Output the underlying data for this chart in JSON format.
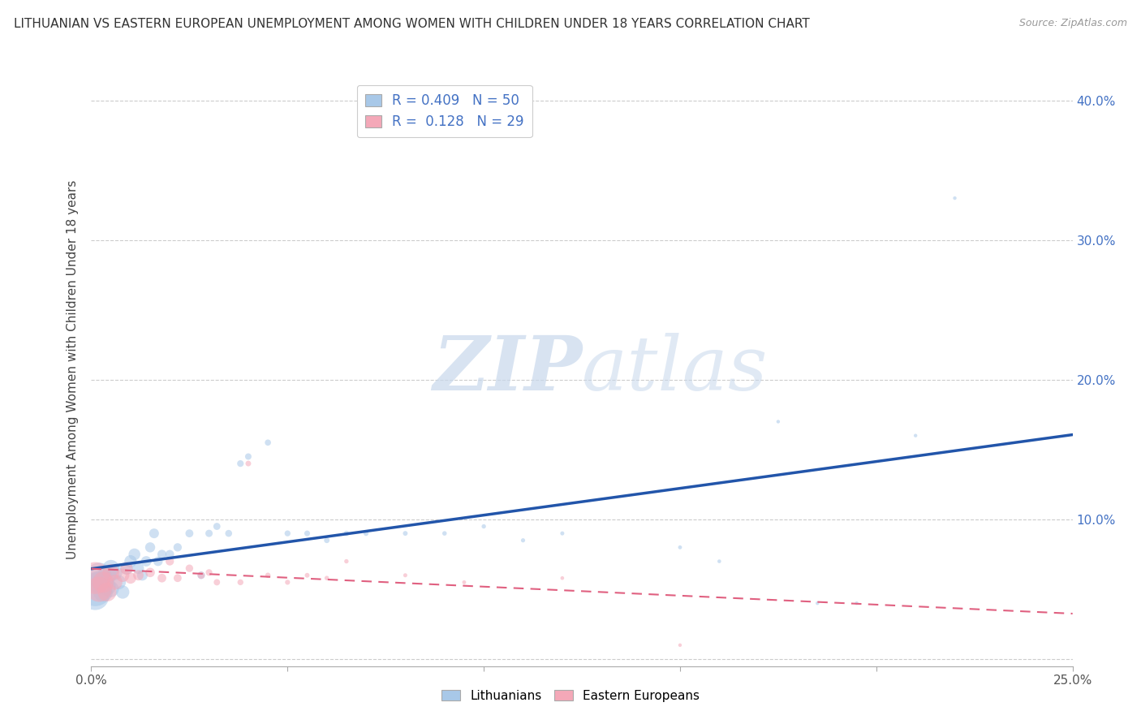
{
  "title": "LITHUANIAN VS EASTERN EUROPEAN UNEMPLOYMENT AMONG WOMEN WITH CHILDREN UNDER 18 YEARS CORRELATION CHART",
  "source": "Source: ZipAtlas.com",
  "ylabel": "Unemployment Among Women with Children Under 18 years",
  "xlim": [
    0.0,
    0.25
  ],
  "ylim": [
    -0.005,
    0.42
  ],
  "xticks": [
    0.0,
    0.05,
    0.1,
    0.15,
    0.2,
    0.25
  ],
  "yticks": [
    0.0,
    0.1,
    0.2,
    0.3,
    0.4
  ],
  "ytick_labels": [
    "",
    "10.0%",
    "20.0%",
    "30.0%",
    "40.0%"
  ],
  "xtick_labels": [
    "0.0%",
    "",
    "",
    "",
    "",
    "25.0%"
  ],
  "R_blue": 0.409,
  "N_blue": 50,
  "R_pink": 0.128,
  "N_pink": 29,
  "blue_color": "#A8C8E8",
  "pink_color": "#F4A8B8",
  "blue_line_color": "#2255AA",
  "pink_line_color": "#E06080",
  "background_color": "#FFFFFF",
  "blue_scatter_x": [
    0.001,
    0.001,
    0.002,
    0.002,
    0.003,
    0.003,
    0.004,
    0.004,
    0.005,
    0.005,
    0.006,
    0.007,
    0.008,
    0.009,
    0.01,
    0.011,
    0.012,
    0.013,
    0.014,
    0.015,
    0.016,
    0.017,
    0.018,
    0.02,
    0.022,
    0.025,
    0.028,
    0.03,
    0.032,
    0.035,
    0.038,
    0.04,
    0.045,
    0.05,
    0.055,
    0.06,
    0.065,
    0.07,
    0.08,
    0.09,
    0.1,
    0.11,
    0.12,
    0.15,
    0.16,
    0.175,
    0.185,
    0.195,
    0.21,
    0.22
  ],
  "blue_scatter_y": [
    0.05,
    0.045,
    0.06,
    0.055,
    0.055,
    0.048,
    0.06,
    0.052,
    0.065,
    0.05,
    0.062,
    0.055,
    0.048,
    0.065,
    0.07,
    0.075,
    0.065,
    0.06,
    0.07,
    0.08,
    0.09,
    0.07,
    0.075,
    0.075,
    0.08,
    0.09,
    0.06,
    0.09,
    0.095,
    0.09,
    0.14,
    0.145,
    0.155,
    0.09,
    0.09,
    0.085,
    0.09,
    0.09,
    0.09,
    0.09,
    0.095,
    0.085,
    0.09,
    0.08,
    0.07,
    0.17,
    0.04,
    0.04,
    0.16,
    0.33
  ],
  "blue_scatter_size": [
    900,
    600,
    500,
    400,
    350,
    300,
    280,
    250,
    220,
    200,
    180,
    160,
    140,
    130,
    120,
    110,
    100,
    90,
    85,
    80,
    75,
    70,
    65,
    60,
    55,
    50,
    45,
    42,
    40,
    38,
    35,
    33,
    30,
    28,
    26,
    24,
    22,
    20,
    18,
    16,
    15,
    14,
    13,
    12,
    11,
    10,
    10,
    10,
    10,
    10
  ],
  "pink_scatter_x": [
    0.001,
    0.002,
    0.003,
    0.004,
    0.005,
    0.006,
    0.008,
    0.009,
    0.01,
    0.012,
    0.015,
    0.018,
    0.02,
    0.022,
    0.025,
    0.028,
    0.03,
    0.032,
    0.038,
    0.04,
    0.045,
    0.05,
    0.055,
    0.06,
    0.065,
    0.08,
    0.095,
    0.12,
    0.15
  ],
  "pink_scatter_y": [
    0.058,
    0.05,
    0.055,
    0.048,
    0.062,
    0.055,
    0.06,
    0.065,
    0.058,
    0.06,
    0.062,
    0.058,
    0.07,
    0.058,
    0.065,
    0.06,
    0.062,
    0.055,
    0.055,
    0.14,
    0.06,
    0.055,
    0.06,
    0.058,
    0.07,
    0.06,
    0.055,
    0.058,
    0.01
  ],
  "pink_scatter_size": [
    800,
    500,
    350,
    280,
    220,
    180,
    140,
    120,
    100,
    85,
    70,
    60,
    55,
    50,
    45,
    40,
    35,
    32,
    28,
    25,
    22,
    20,
    18,
    16,
    15,
    13,
    12,
    11,
    10
  ]
}
